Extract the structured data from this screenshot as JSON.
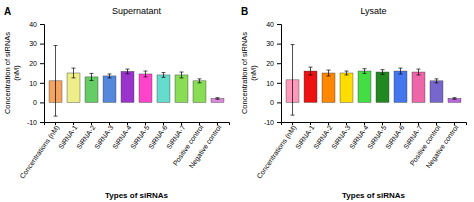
{
  "chart_data": [
    {
      "type": "bar",
      "title": "Supernatant",
      "annotations": [
        "A"
      ],
      "categories": [
        "Concentrations (nM)",
        "SiRNA-1",
        "SiRNA-2",
        "SiRNA-3",
        "SiRNA-4",
        "SiRNA-5",
        "SiRNA-6",
        "SiRNA-7",
        "Positive control",
        "Negative control"
      ],
      "values": [
        11,
        15,
        13,
        13.5,
        15.8,
        14.5,
        14,
        14,
        11,
        2
      ],
      "errors": [
        18,
        2.5,
        1.8,
        1.0,
        1.2,
        1.5,
        1.2,
        1.5,
        1.0,
        0.4
      ],
      "colors": [
        "#F4A460",
        "#EEEE88",
        "#66CC66",
        "#5588DD",
        "#9933CC",
        "#FF44CC",
        "#66DDCC",
        "#88DD55",
        "#88DD55",
        "#DD88DD"
      ],
      "ylabel": "Concentration of siRNAs\n(nM)",
      "xlabel": "Types of siRNAs",
      "ylim": [
        -10,
        40
      ],
      "yticks": [
        -10,
        0,
        10,
        20,
        30,
        40
      ],
      "grid": false
    },
    {
      "type": "bar",
      "title": "Lysate",
      "annotations": [
        "B"
      ],
      "categories": [
        "Concentrations (nM)",
        "SiRNA-1",
        "SiRNA-2",
        "SiRNA-3",
        "SiRNA-4",
        "SiRNA-5",
        "SiRNA-6",
        "SiRNA-7",
        "Positive control",
        "Negative control"
      ],
      "values": [
        11.5,
        16,
        15,
        15,
        16,
        15.5,
        16,
        15.5,
        11,
        2
      ],
      "errors": [
        18,
        2.0,
        1.5,
        1.0,
        1.2,
        1.2,
        1.5,
        1.5,
        1.0,
        0.4
      ],
      "colors": [
        "#FF99BB",
        "#EE1111",
        "#FF8800",
        "#FFDD00",
        "#44DD44",
        "#228822",
        "#4477EE",
        "#EE66AA",
        "#7766CC",
        "#BB66DD"
      ],
      "ylabel": "Concentration of siRNAs\n(nM)",
      "xlabel": "Types of siRNAs",
      "ylim": [
        -10,
        40
      ],
      "yticks": [
        -10,
        0,
        10,
        20,
        30,
        40
      ],
      "grid": false
    }
  ]
}
